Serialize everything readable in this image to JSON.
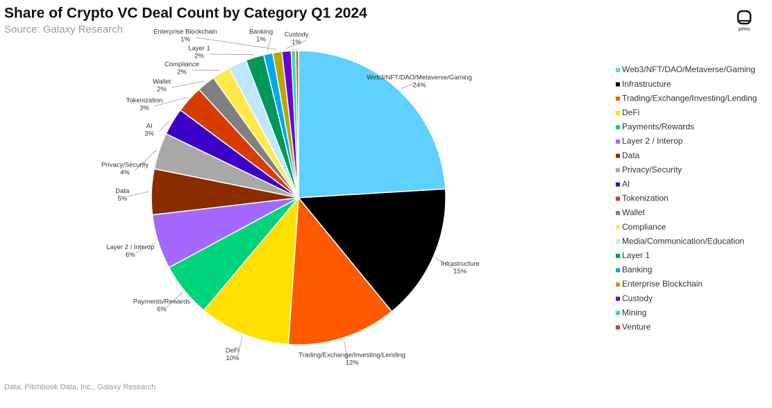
{
  "chart_data": {
    "type": "pie",
    "title": "Share of Crypto VC Deal Count by Category Q1 2024",
    "subtitle": "Source: Galaxy Research",
    "note": "Data: Pitchbook Data, Inc., Galaxy Research",
    "logo": "galaxy",
    "categories": [
      "Web3/NFT/DAO/Metaverse/Gaming",
      "Infrastructure",
      "Trading/Exchange/Investing/Lending",
      "DeFi",
      "Payments/Rewards",
      "Layer 2 / Interop",
      "Data",
      "Privacy/Security",
      "AI",
      "Tokenization",
      "Wallet",
      "Compliance",
      "Media/Communication/Education",
      "Layer 1",
      "Banking",
      "Enterprise Blockchain",
      "Custody",
      "Mining",
      "Venture"
    ],
    "values": [
      24,
      15,
      12,
      10,
      6,
      6,
      5,
      4,
      3,
      3,
      2,
      2,
      2,
      2,
      1,
      1,
      1,
      0.5,
      0.3
    ],
    "value_labels": [
      "24%",
      "15%",
      "12%",
      "10%",
      "6%",
      "6%",
      "5%",
      "4%",
      "3%",
      "3%",
      "2%",
      "2%",
      null,
      "2%",
      "1%",
      "1%",
      "1%",
      null,
      null
    ],
    "colors": [
      "#5fd0ff",
      "#000000",
      "#ff5a00",
      "#ffe100",
      "#00d47a",
      "#a467ff",
      "#8a2c00",
      "#a8a8a8",
      "#3c00c8",
      "#d63c00",
      "#808080",
      "#ffe94a",
      "#bfe8ff",
      "#00975a",
      "#00a8f0",
      "#b8a600",
      "#6a00d8",
      "#22e6b0",
      "#d24a12"
    ],
    "legend": "right"
  }
}
